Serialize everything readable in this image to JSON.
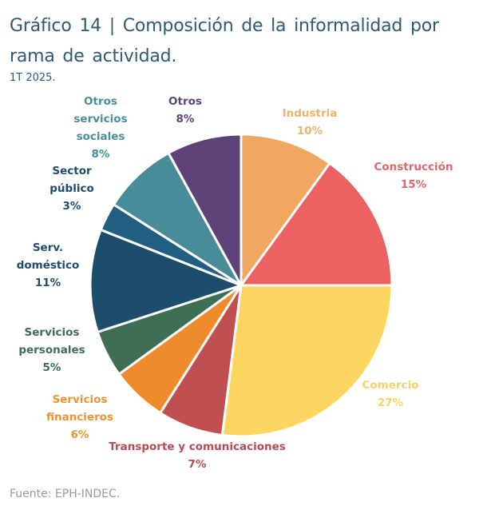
{
  "header": {
    "title": "Gráfico 14 | Composición de la informalidad por rama de actividad.",
    "subtitle": "1T 2025."
  },
  "footer": {
    "source": "Fuente: EPH-INDEC."
  },
  "chart_data": {
    "type": "pie",
    "title": "Gráfico 14 | Composición de la informalidad por rama de actividad.",
    "subtitle": "1T 2025.",
    "start_angle": "12 o'clock",
    "direction": "clockwise",
    "unit": "%",
    "slices": [
      {
        "name": "Industria",
        "label_lines": [
          "Industria"
        ],
        "value": 10,
        "color": "#f0a860"
      },
      {
        "name": "Construcción",
        "label_lines": [
          "Construcción"
        ],
        "value": 15,
        "color": "#ec6262"
      },
      {
        "name": "Comercio",
        "label_lines": [
          "Comercio"
        ],
        "value": 27,
        "color": "#fdd662"
      },
      {
        "name": "Transporte y comunicaciones",
        "label_lines": [
          "Transporte y comunicaciones"
        ],
        "value": 7,
        "color": "#c04f52"
      },
      {
        "name": "Servicios financieros",
        "label_lines": [
          "Servicios",
          "financieros"
        ],
        "value": 6,
        "color": "#f08b2d"
      },
      {
        "name": "Servicios personales",
        "label_lines": [
          "Servicios",
          "personales"
        ],
        "value": 5,
        "color": "#3e6f55"
      },
      {
        "name": "Serv. doméstico",
        "label_lines": [
          "Serv.",
          "doméstico"
        ],
        "value": 11,
        "color": "#1c4d6b"
      },
      {
        "name": "Sector público",
        "label_lines": [
          "Sector",
          "público"
        ],
        "value": 3,
        "color": "#215f82"
      },
      {
        "name": "Otros servicios sociales",
        "label_lines": [
          "Otros",
          "servicios",
          "sociales"
        ],
        "value": 8,
        "color": "#478c98"
      },
      {
        "name": "Otros",
        "label_lines": [
          "Otros"
        ],
        "value": 8,
        "color": "#5e4379"
      }
    ],
    "label_text_colors": {
      "Industria": "#eeb26c",
      "Construcción": "#e4646c",
      "Comercio": "#f6d26a",
      "Transporte y comunicaciones": "#b94a52",
      "Servicios financieros": "#ee922f",
      "Servicios personales": "#3f6b58",
      "Serv. doméstico": "#1f4d6c",
      "Sector público": "#1f4d6c",
      "Otros servicios sociales": "#4a8e9a",
      "Otros": "#5e4379"
    },
    "legend": "none (direct labels)"
  }
}
